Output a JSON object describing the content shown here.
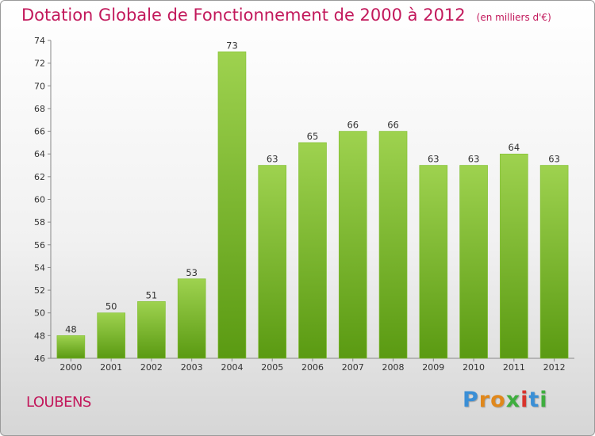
{
  "title": "Dotation Globale de Fonctionnement de 2000 à 2012",
  "subtitle": "(en milliers d'€)",
  "commune": "LOUBENS",
  "logo": {
    "text": "Proxiti",
    "colors": [
      "#3a8fd6",
      "#e0881c",
      "#e0881c",
      "#3fae3f",
      "#d8332c",
      "#3a8fd6",
      "#3fae3f"
    ]
  },
  "colors": {
    "bar_light": "#9ed24f",
    "bar_dark": "#5a9a12",
    "title": "#c2185b"
  },
  "chart_data": {
    "type": "bar",
    "categories": [
      "2000",
      "2001",
      "2002",
      "2003",
      "2004",
      "2005",
      "2006",
      "2007",
      "2008",
      "2009",
      "2010",
      "2011",
      "2012"
    ],
    "values": [
      48,
      50,
      51,
      53,
      73,
      63,
      65,
      66,
      66,
      63,
      63,
      64,
      63
    ],
    "ylim": [
      46,
      74
    ],
    "yticks": [
      46,
      48,
      50,
      52,
      54,
      56,
      58,
      60,
      62,
      64,
      66,
      68,
      70,
      72,
      74
    ],
    "grid": false,
    "xlabel": "",
    "ylabel": ""
  }
}
